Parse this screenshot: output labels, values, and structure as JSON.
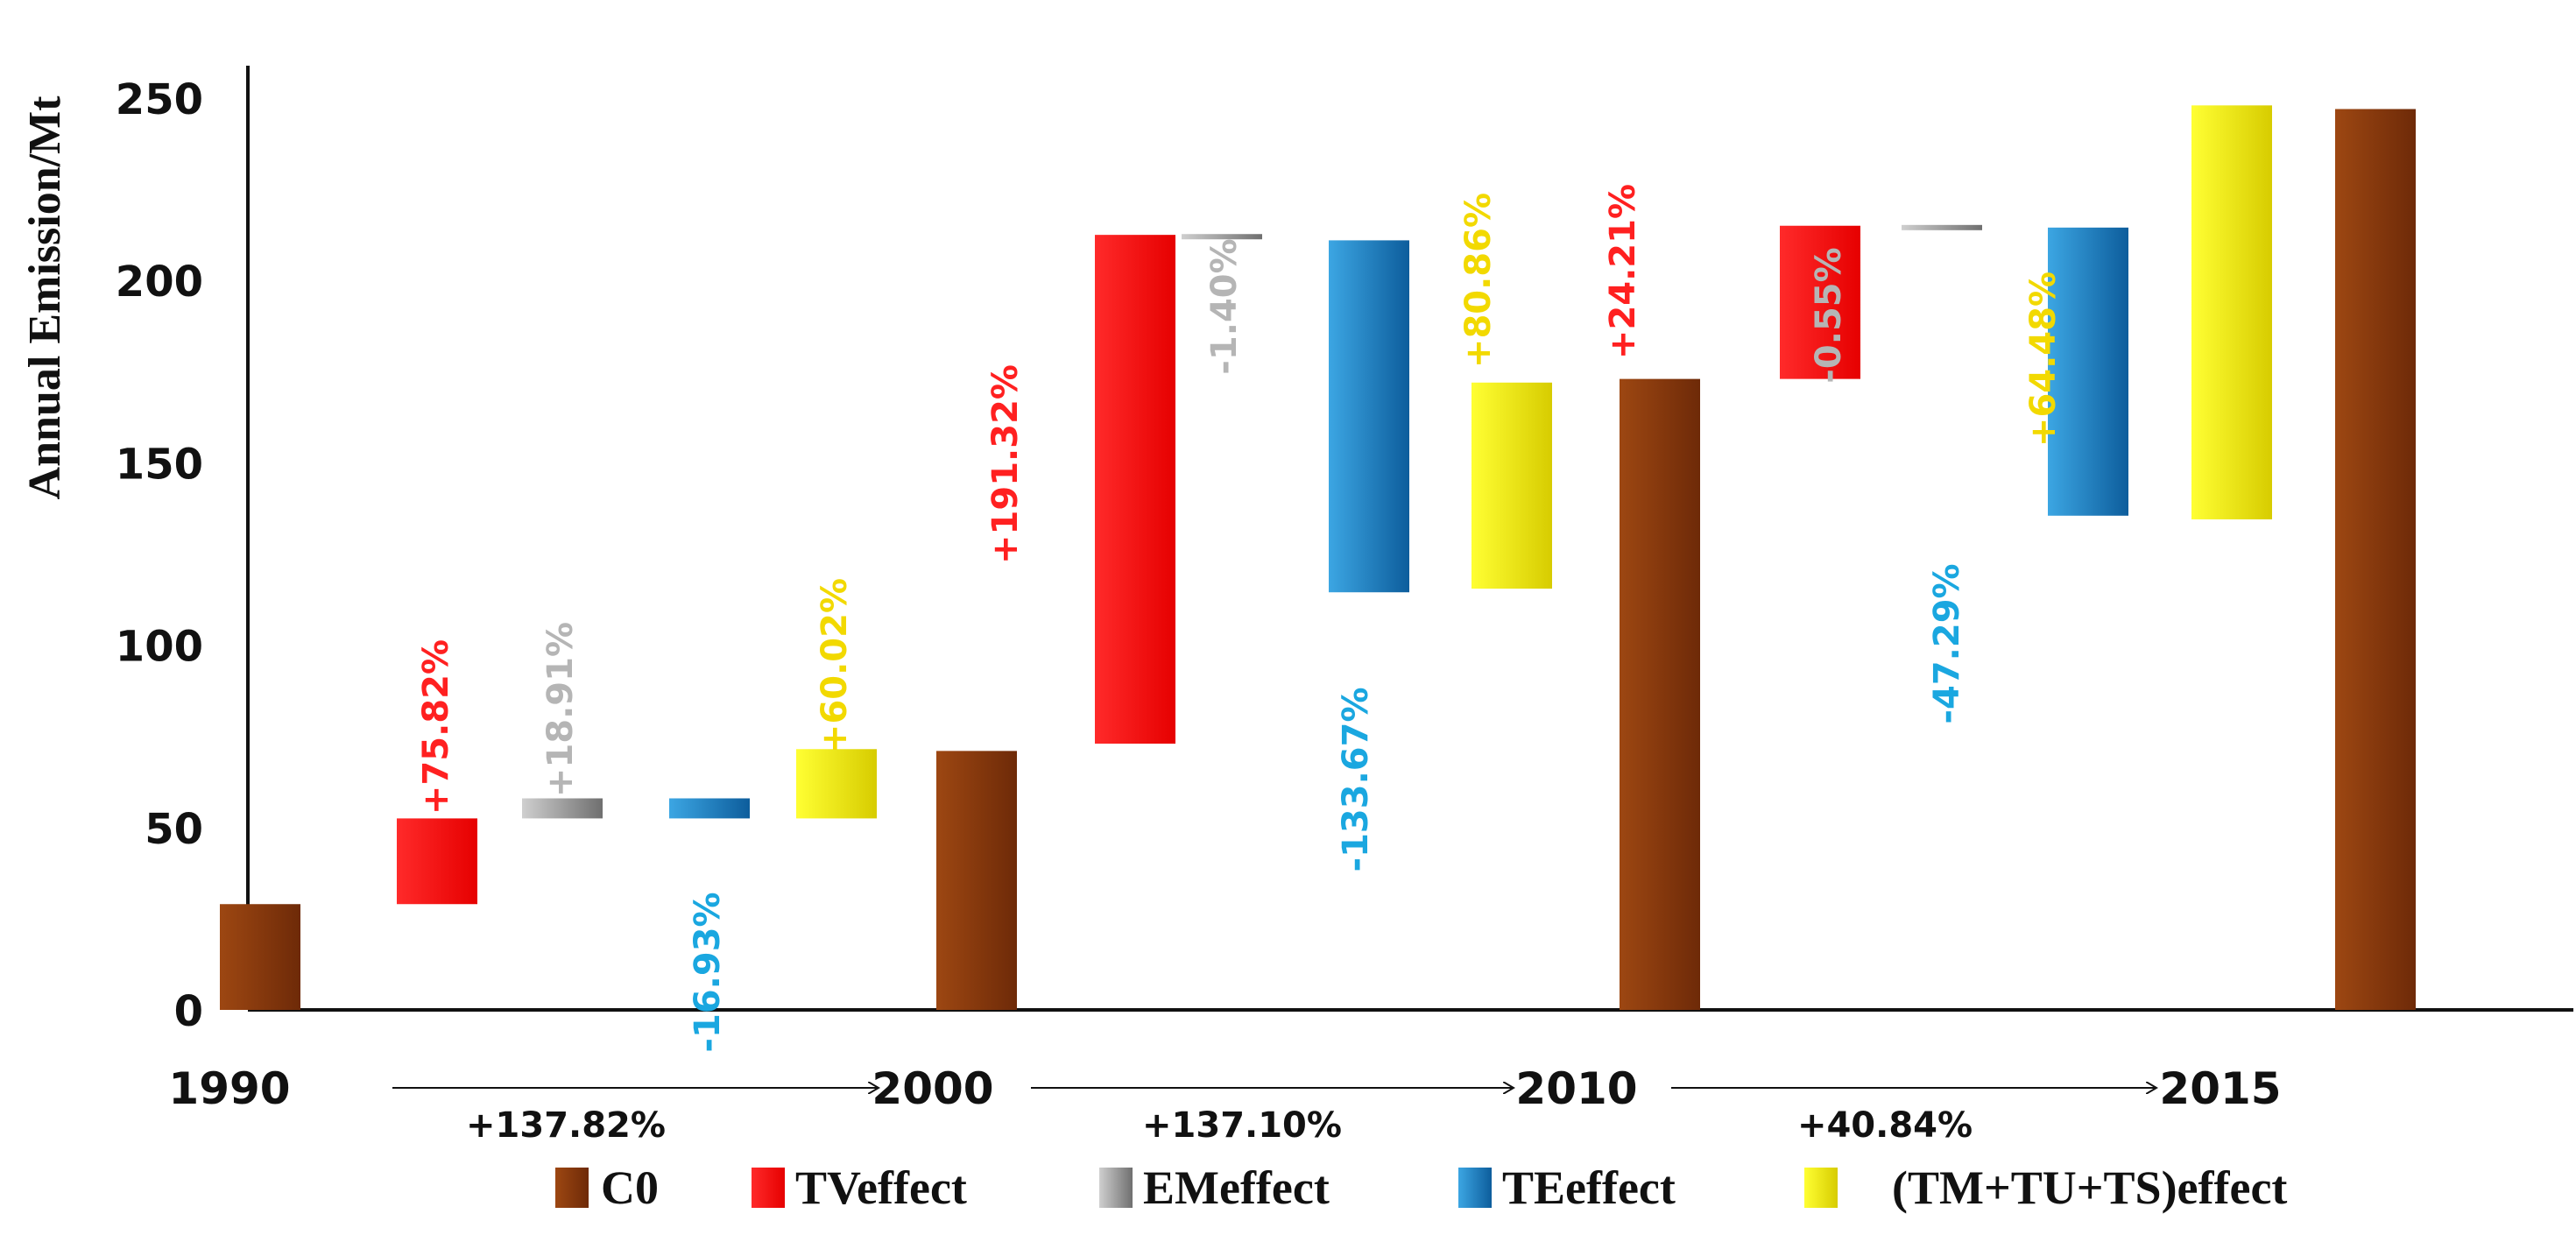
{
  "chart_data": {
    "type": "waterfall",
    "ylabel": "Annual Emission/Mt",
    "ylim": [
      0,
      250
    ],
    "yticks": [
      0,
      50,
      100,
      150,
      200,
      250
    ],
    "years": [
      "1990",
      "2000",
      "2010",
      "2015"
    ],
    "growth": [
      "+137.82%",
      "+137.10%",
      "+40.84%"
    ],
    "legend": [
      "C0",
      "TVeffect",
      "EMeffect",
      "TEeffect",
      "(TM+TU+TS)effect"
    ],
    "colors": {
      "C0": "#8B3A0F",
      "TVeffect": "#FF1010",
      "EMeffect": "#A8A8A8",
      "TEeffect": "#1E86C6",
      "TMTUTS": "#FFF000",
      "te_label": "#1AA7E0",
      "tm_label": "#F2D900",
      "tv_label": "#FF2020",
      "em_label": "#B5B5B5"
    },
    "bars": [
      {
        "series": "C0",
        "start": 0,
        "end": 29,
        "label": ""
      },
      {
        "series": "TVeffect",
        "start": 29,
        "end": 52.5,
        "label": "+75.82%"
      },
      {
        "series": "EMeffect",
        "start": 52.5,
        "end": 58,
        "label": "+18.91%"
      },
      {
        "series": "TEeffect",
        "start": 58,
        "end": 52.5,
        "label": "-16.93%"
      },
      {
        "series": "TMTUTS",
        "start": 52.5,
        "end": 71.5,
        "label": "+60.02%"
      },
      {
        "series": "C0",
        "start": 0,
        "end": 71,
        "label": ""
      },
      {
        "series": "TVeffect",
        "start": 73,
        "end": 212.5,
        "label": "+191.32%"
      },
      {
        "series": "EMeffect",
        "start": 212.5,
        "end": 211.5,
        "label": "-1.40%"
      },
      {
        "series": "TEeffect",
        "start": 211,
        "end": 114.5,
        "label": "-133.67%"
      },
      {
        "series": "TMTUTS",
        "start": 115.5,
        "end": 172,
        "label": "+80.86%"
      },
      {
        "series": "C0",
        "start": 0,
        "end": 173,
        "label": ""
      },
      {
        "series": "TVeffect",
        "start": 173,
        "end": 215,
        "label": "+24.21%"
      },
      {
        "series": "EMeffect",
        "start": 215,
        "end": 214,
        "label": "-0.55%"
      },
      {
        "series": "TEeffect",
        "start": 214.5,
        "end": 135.5,
        "label": "-47.29%"
      },
      {
        "series": "TMTUTS",
        "start": 134.5,
        "end": 248,
        "label": "+64.48%"
      },
      {
        "series": "C0",
        "start": 0,
        "end": 247,
        "label": ""
      }
    ]
  }
}
